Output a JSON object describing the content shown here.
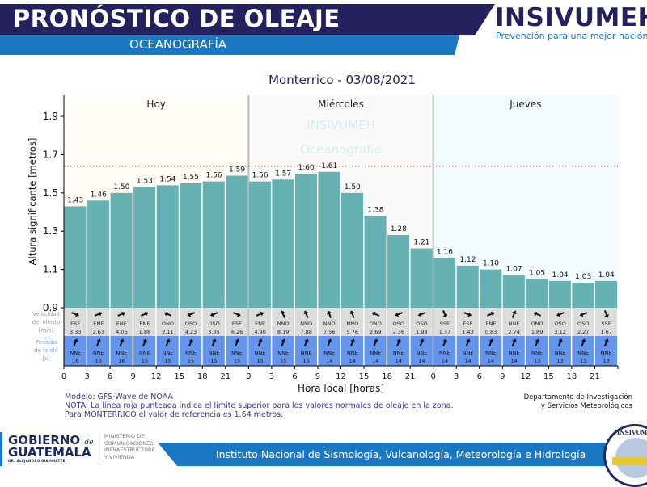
{
  "header": {
    "title": "PRONÓSTICO DE OLEAJE",
    "subtitle": "OCEANOGRAFÍA",
    "brand": "INSIVUMEH",
    "brand_tagline": "Prevención para una mejor nación"
  },
  "chart_title": "Monterrico  -  03/08/2021",
  "chart_data": {
    "type": "bar",
    "title": "Monterrico  -  03/08/2021",
    "xlabel": "Hora local [horas]",
    "ylabel": "Altura significante [metros]",
    "ylim": [
      0.9,
      2.01
    ],
    "yticks": [
      "0.9",
      "1.1",
      "1.3",
      "1.5",
      "1.7",
      "1.9"
    ],
    "xtick_labels": [
      "0",
      "3",
      "6",
      "9",
      "12",
      "15",
      "18",
      "21"
    ],
    "days": [
      {
        "label": "Hoy",
        "background": "#fffdf6"
      },
      {
        "label": "Miércoles",
        "background": "#fafafa"
      },
      {
        "label": "Jueves",
        "background": "#f3fcfd"
      }
    ],
    "watermark": [
      "INSIVUMEH",
      "Oceanografía"
    ],
    "reference_line": {
      "value": 1.64,
      "color": "#cc2222",
      "style": "dotted"
    },
    "bar_color": "#66b2b2",
    "hours": [
      0,
      3,
      6,
      9,
      12,
      15,
      18,
      21,
      0,
      3,
      6,
      9,
      12,
      15,
      18,
      21,
      0,
      3,
      6,
      9,
      12,
      15,
      18,
      21
    ],
    "values": [
      1.43,
      1.46,
      1.5,
      1.53,
      1.54,
      1.55,
      1.56,
      1.59,
      1.56,
      1.57,
      1.6,
      1.61,
      1.5,
      1.38,
      1.28,
      1.21,
      1.16,
      1.12,
      1.1,
      1.07,
      1.05,
      1.04,
      1.03,
      1.04
    ],
    "value_labels": [
      "1.43",
      "1.46",
      "1.50",
      "1.53",
      "1.54",
      "1.55",
      "1.56",
      "1.59",
      "1.56",
      "1.57",
      "1.60",
      "1.61",
      "1.50",
      "1.38",
      "1.28",
      "1.21",
      "1.16",
      "1.12",
      "1.10",
      "1.07",
      "1.05",
      "1.04",
      "1.03",
      "1.04"
    ],
    "wind": {
      "label": [
        "Velocidad",
        "del viento",
        "[m/s]"
      ],
      "color": "#dcdcdc",
      "directions": [
        "ESE",
        "ENE",
        "ENE",
        "ENE",
        "ONO",
        "OSO",
        "OSO",
        "ESE",
        "ENE",
        "NNO",
        "NNO",
        "NNO",
        "NNO",
        "ONO",
        "OSO",
        "OSO",
        "SSE",
        "ESE",
        "ENE",
        "NNE",
        "ONO",
        "OSO",
        "OSO",
        "SSE"
      ],
      "speeds": [
        "3.33",
        "2.63",
        "4.06",
        "1.86",
        "2.11",
        "4.23",
        "3.35",
        "6.26",
        "4.90",
        "8.19",
        "7.88",
        "7.56",
        "5.76",
        "2.69",
        "2.36",
        "1.98",
        "1.37",
        "1.43",
        "0.83",
        "2.74",
        "1.89",
        "3.12",
        "2.27",
        "1.67"
      ]
    },
    "period": {
      "label": [
        "Período",
        "de la ola",
        "[s]"
      ],
      "color": "#6495ed",
      "directions": [
        "NNE",
        "NNE",
        "NNE",
        "NNE",
        "NNE",
        "NNE",
        "NNE",
        "NNE",
        "NNE",
        "NNE",
        "NNE",
        "NNE",
        "NNE",
        "NNE",
        "NNE",
        "NNE",
        "NNE",
        "NNE",
        "NNE",
        "NNE",
        "NNE",
        "NNE",
        "NNE",
        "NNE"
      ],
      "periods": [
        "16",
        "16",
        "16",
        "15",
        "15",
        "15",
        "15",
        "15",
        "15",
        "15",
        "15",
        "14",
        "14",
        "14",
        "14",
        "14",
        "14",
        "14",
        "14",
        "14",
        "13",
        "13",
        "13",
        "13"
      ]
    }
  },
  "notes": {
    "model": "Modelo: GFS-Wave de NOAA",
    "note1": "NOTA: La línea roja punteada indica el límite superior para los valores normales de oleaje en la zona.",
    "note2": "Para MONTERRICO el valor de referencia es 1.64 metros."
  },
  "department": [
    "Departamento de Investigación",
    "y Servicios Meteorológicos"
  ],
  "footer": {
    "gov_line1": "GOBIERNO",
    "gov_de": "de",
    "gov_line2": "GUATEMALA",
    "gov_sign": "DR. ALEJANDRO GIAMMATTEI",
    "ministry": [
      "MINISTERIO DE",
      "COMUNICACIONES,",
      "INFRAESTRUCTURA",
      "Y VIVIENDA"
    ],
    "institute": "Instituto Nacional de Sismología, Vulcanología, Meteorología e Hidrología",
    "seal_text": "INSIVUMEH"
  }
}
